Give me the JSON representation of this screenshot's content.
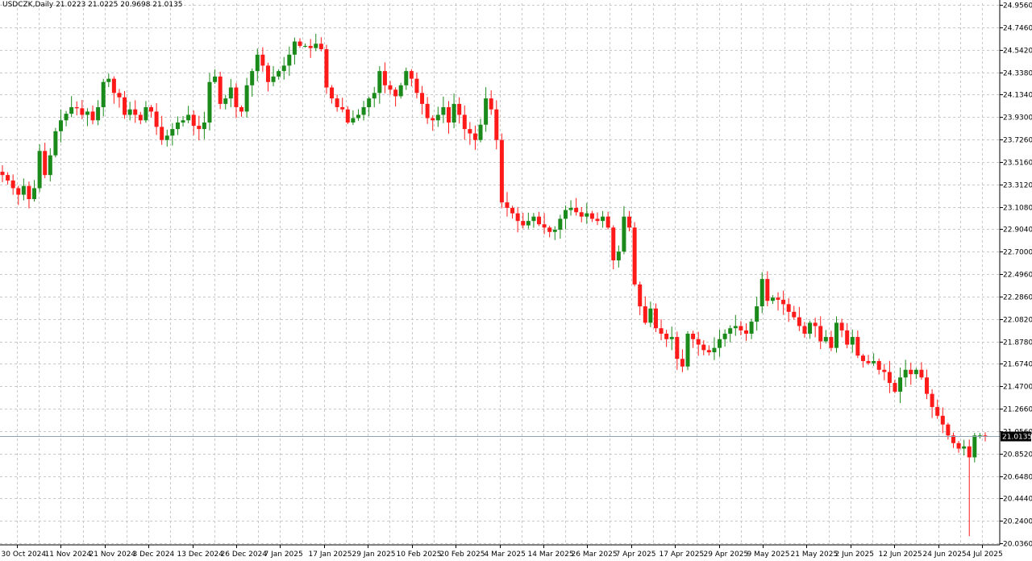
{
  "header": "USDCZK,Daily  21.0223 21.0225 20.9698 21.0135",
  "colors": {
    "background": "#ffffff",
    "grid": "#c8c8c8",
    "bull": "#1a8a1a",
    "bear": "#ff1a1a",
    "price_line": "#8fa3b5",
    "price_tag_bg": "#000000",
    "price_tag_fg": "#ffffff"
  },
  "chart_data": {
    "type": "candlestick",
    "symbol": "USDCZK",
    "timeframe": "Daily",
    "ohlc_header": {
      "open": 21.0223,
      "high": 21.0225,
      "low": 20.9698,
      "close": 21.0135
    },
    "current_price": 21.0135,
    "current_price_label": "21.0135",
    "ylim": [
      20.02,
      24.97
    ],
    "grid": true,
    "y_ticks": [
      "24.9560",
      "24.7460",
      "24.5420",
      "24.3380",
      "24.1340",
      "23.9300",
      "23.7260",
      "23.5160",
      "23.3120",
      "23.1080",
      "22.9040",
      "22.7000",
      "22.4960",
      "22.2860",
      "22.0820",
      "21.8780",
      "21.6740",
      "21.4700",
      "21.2660",
      "21.0560",
      "20.8520",
      "20.6480",
      "20.4440",
      "20.2400",
      "20.0360"
    ],
    "x_ticks": [
      "30 Oct 2024",
      "11 Nov 2024",
      "21 Nov 2024",
      "3 Dec 2024",
      "13 Dec 2024",
      "26 Dec 2024",
      "7 Jan 2025",
      "17 Jan 2025",
      "29 Jan 2025",
      "10 Feb 2025",
      "20 Feb 2025",
      "4 Mar 2025",
      "14 Mar 2025",
      "26 Mar 2025",
      "7 Apr 2025",
      "17 Apr 2025",
      "29 Apr 2025",
      "9 May 2025",
      "21 May 2025",
      "2 Jun 2025",
      "12 Jun 2025",
      "24 Jun 2025",
      "4 Jul 2025"
    ],
    "close_series": [
      23.4,
      23.35,
      23.28,
      23.22,
      23.3,
      23.18,
      23.28,
      23.62,
      23.4,
      23.58,
      23.8,
      23.9,
      23.96,
      24.02,
      24.01,
      23.95,
      23.98,
      23.9,
      24.02,
      24.25,
      24.28,
      24.15,
      24.11,
      23.95,
      24.0,
      23.95,
      23.9,
      24.02,
      23.98,
      23.84,
      23.72,
      23.76,
      23.82,
      23.88,
      23.9,
      23.95,
      23.85,
      23.82,
      23.88,
      24.25,
      24.3,
      24.05,
      24.1,
      24.2,
      24.02,
      23.98,
      24.22,
      24.35,
      24.5,
      24.4,
      24.25,
      24.3,
      24.35,
      24.4,
      24.5,
      24.62,
      24.58,
      24.58,
      24.56,
      24.6,
      24.55,
      24.2,
      24.1,
      24.02,
      24.0,
      23.88,
      23.92,
      23.95,
      24.02,
      24.1,
      24.15,
      24.35,
      24.22,
      24.18,
      24.12,
      24.22,
      24.35,
      24.28,
      24.15,
      24.05,
      23.92,
      23.9,
      23.95,
      24.02,
      23.88,
      24.05,
      23.95,
      23.82,
      23.78,
      23.72,
      23.86,
      24.1,
      24.0,
      23.72,
      23.15,
      23.1,
      23.05,
      22.98,
      22.94,
      22.98,
      23.02,
      22.95,
      22.92,
      22.88,
      22.9,
      23.0,
      23.08,
      23.1,
      23.06,
      23.02,
      23.05,
      23.0,
      22.98,
      23.02,
      22.92,
      22.62,
      22.7,
      23.02,
      22.92,
      22.4,
      22.2,
      22.05,
      22.18,
      22.0,
      21.95,
      21.9,
      21.92,
      21.72,
      21.65,
      21.95,
      21.9,
      21.85,
      21.8,
      21.78,
      21.82,
      21.9,
      21.95,
      22.0,
      22.02,
      21.98,
      21.95,
      22.06,
      22.2,
      22.45,
      22.25,
      22.28,
      22.26,
      22.22,
      22.15,
      22.1,
      22.02,
      21.95,
      22.05,
      22.02,
      21.88,
      21.92,
      21.82,
      22.05,
      21.98,
      21.85,
      21.92,
      21.75,
      21.7,
      21.68,
      21.7,
      21.62,
      21.6,
      21.5,
      21.42,
      21.55,
      21.62,
      21.58,
      21.62,
      21.55,
      21.4,
      21.28,
      21.2,
      21.12,
      21.02,
      20.95,
      20.9,
      20.92,
      20.82,
      21.02,
      21.02,
      21.01
    ]
  }
}
